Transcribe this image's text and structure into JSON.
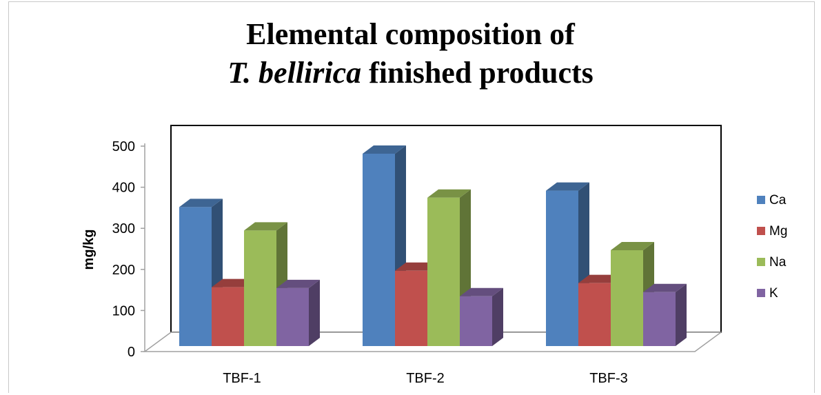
{
  "chart_data": {
    "type": "bar",
    "title_line1": "Elemental composition of",
    "title_line2_italic": "T. bellirica",
    "title_line2_rest": " finished products",
    "xlabel": "",
    "ylabel": "mg/kg",
    "ylim": [
      0,
      500
    ],
    "yticks": [
      "0",
      "100",
      "200",
      "300",
      "400",
      "500"
    ],
    "categories": [
      "TBF-1",
      "TBF-2",
      "TBF-3"
    ],
    "series": [
      {
        "name": "Ca",
        "color": "#4f81bd",
        "values": [
          355,
          485,
          395
        ]
      },
      {
        "name": "Mg",
        "color": "#c0504d",
        "values": [
          160,
          200,
          170
        ]
      },
      {
        "name": "Na",
        "color": "#9bbb59",
        "values": [
          298,
          378,
          250
        ]
      },
      {
        "name": "K",
        "color": "#8064a2",
        "values": [
          158,
          138,
          148
        ]
      }
    ],
    "legend_position": "right",
    "grid": false,
    "style": "3d-clustered-column"
  }
}
